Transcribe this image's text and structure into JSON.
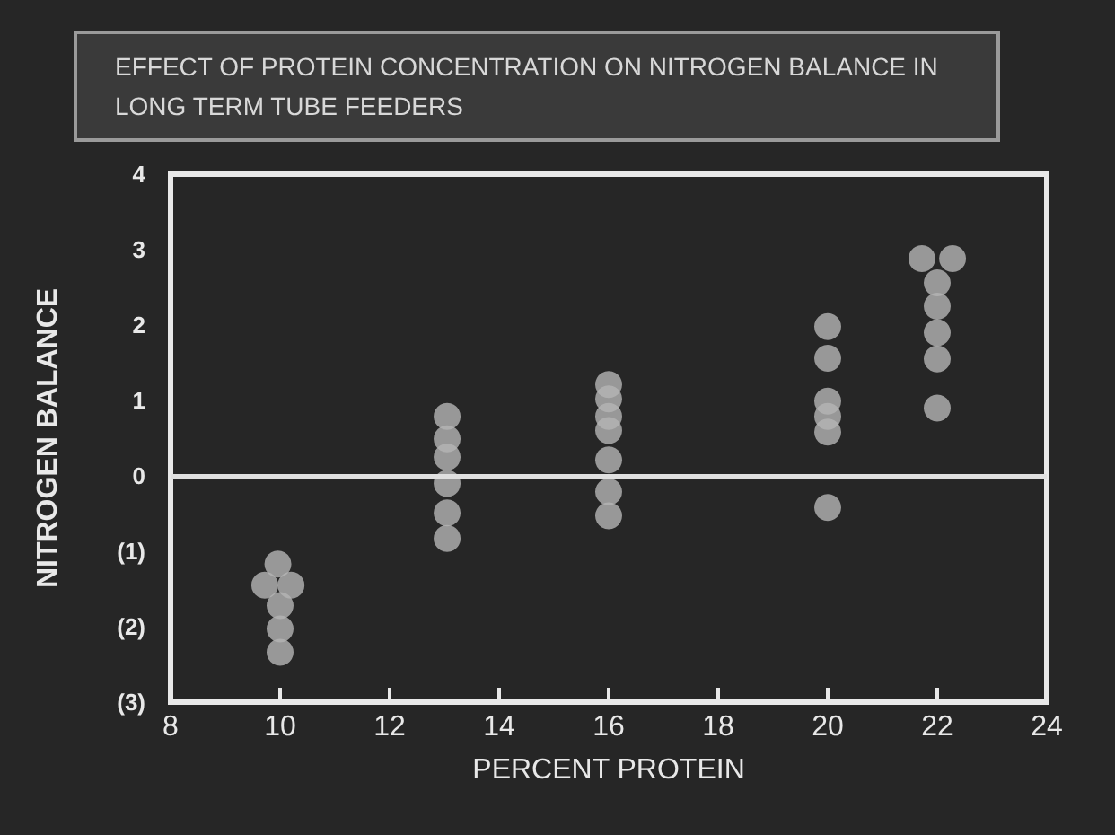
{
  "chart_data": {
    "type": "scatter",
    "title": "EFFECT OF PROTEIN CONCENTRATION ON NITROGEN BALANCE IN LONG TERM TUBE FEEDERS",
    "xlabel": "PERCENT PROTEIN",
    "ylabel": "NITROGEN BALANCE",
    "series": [
      {
        "color": "#b5b5b5",
        "x": [
          9.96,
          9.72,
          10.2,
          10,
          10,
          10,
          13.05,
          13.05,
          13.05,
          13.05,
          13.05,
          13.05,
          16,
          16,
          16,
          16,
          16,
          16,
          16,
          20,
          20,
          20,
          20,
          20,
          20,
          21.72,
          22.28,
          22,
          22,
          22,
          22,
          22
        ],
        "values": [
          -1.17,
          -1.45,
          -1.45,
          -1.72,
          -2.03,
          -2.34,
          0.79,
          0.49,
          0.25,
          -0.1,
          -0.49,
          -0.83,
          1.21,
          1.02,
          0.79,
          0.6,
          0.21,
          -0.21,
          -0.53,
          1.98,
          1.56,
          0.99,
          0.79,
          0.58,
          -0.42,
          2.88,
          2.88,
          2.56,
          2.25,
          1.9,
          1.55,
          0.9
        ]
      }
    ],
    "xlim": [
      8,
      24
    ],
    "xticks": [
      8,
      10,
      12,
      14,
      16,
      18,
      20,
      22,
      24
    ],
    "ylim": [
      -3,
      4
    ],
    "yticks": [
      {
        "value": -3,
        "label": "(3)"
      },
      {
        "value": -2,
        "label": "(2)"
      },
      {
        "value": -1,
        "label": "(1)"
      },
      0,
      1,
      2,
      3,
      4
    ],
    "ref_lines": [
      {
        "axis": "y",
        "value": 0,
        "color": "#e0e0e0"
      }
    ],
    "grid": false,
    "marker": "circle"
  }
}
